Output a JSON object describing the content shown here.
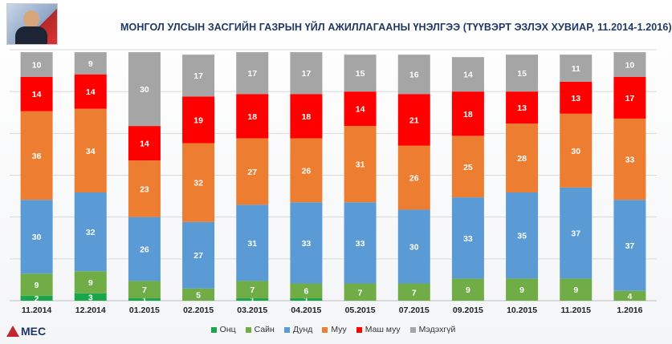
{
  "title": "МОНГОЛ УЛСЫН ЗАСГИЙН ГАЗРЫН ҮЙЛ АЖИЛЛАГААНЫ ҮНЭЛГЭЭ (ТҮҮВЭРТ ЭЗЛЭХ ХУВИАР, 11.2014-1.2016)",
  "logo_text": "MEC",
  "chart_data": {
    "type": "bar",
    "stacked": true,
    "categories": [
      "11.2014",
      "12.2014",
      "01.2015",
      "02.2015",
      "03.2015",
      "04.2015",
      "05.2015",
      "07.2015",
      "09.2015",
      "10.2015",
      "11.2015",
      "1.2016"
    ],
    "series": [
      {
        "name": "Онц",
        "color": "#1aa64b",
        "values": [
          2,
          3,
          1,
          0,
          1,
          1,
          0,
          0,
          0,
          0,
          0,
          0
        ]
      },
      {
        "name": "Сайн",
        "color": "#70ad47",
        "values": [
          9,
          9,
          7,
          5,
          7,
          6,
          7,
          7,
          9,
          9,
          9,
          4
        ]
      },
      {
        "name": "Дунд",
        "color": "#5b9bd5",
        "values": [
          30,
          32,
          26,
          27,
          31,
          33,
          33,
          30,
          33,
          35,
          37,
          37
        ]
      },
      {
        "name": "Муу",
        "color": "#ed7d31",
        "values": [
          36,
          34,
          23,
          32,
          27,
          26,
          31,
          26,
          25,
          28,
          30,
          33
        ]
      },
      {
        "name": "Маш муу",
        "color": "#ff0000",
        "values": [
          14,
          14,
          14,
          19,
          18,
          18,
          14,
          21,
          18,
          13,
          13,
          17
        ]
      },
      {
        "name": "Мэдэхгүй",
        "color": "#a5a5a5",
        "values": [
          10,
          9,
          30,
          17,
          17,
          17,
          15,
          16,
          14,
          15,
          11,
          10
        ]
      }
    ],
    "ylim": [
      0,
      102
    ],
    "grid": true,
    "legend": "bottom"
  }
}
